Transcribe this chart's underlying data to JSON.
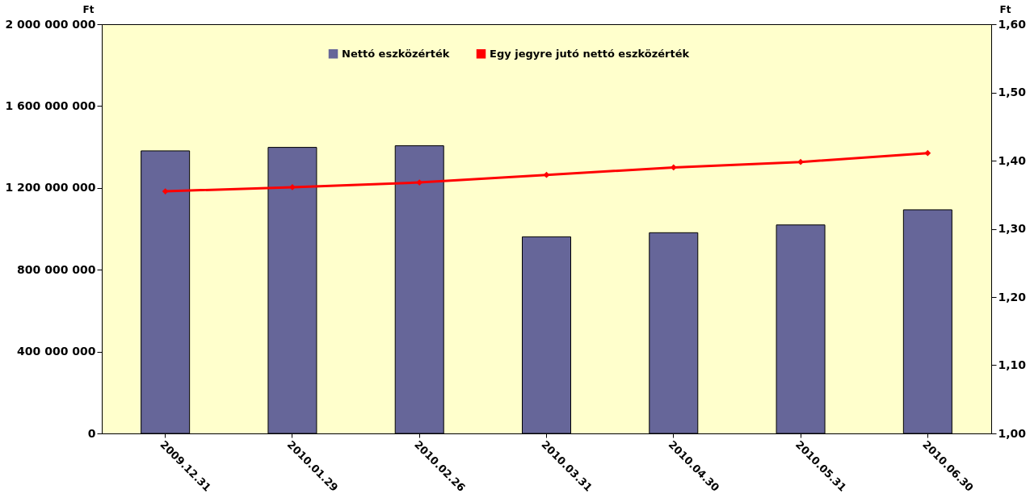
{
  "chart_data": {
    "type": "bar",
    "categories": [
      "2009.12.31",
      "2010.01.29",
      "2010.02.26",
      "2010.03.31",
      "2010.04.30",
      "2010.05.31",
      "2010.06.30"
    ],
    "ylabel": "Ft",
    "y2label": "Ft",
    "series": [
      {
        "name": "Nettó eszközérték",
        "type": "bar",
        "color": "#666699",
        "values": [
          1381000000,
          1398000000,
          1406000000,
          961000000,
          981000000,
          1019000000,
          1093000000
        ]
      },
      {
        "name": "Egy jegyre jutó nettó eszközérték",
        "type": "line",
        "axis": "y2",
        "color": "#ff0000",
        "values": [
          1.355,
          1.361,
          1.368,
          1.379,
          1.39,
          1.398,
          1.411
        ]
      }
    ],
    "ylim": [
      0,
      2000000000
    ],
    "yticks": [
      {
        "value": 0,
        "label": "0"
      },
      {
        "value": 400000000,
        "label": "400 000 000"
      },
      {
        "value": 800000000,
        "label": "800 000 000"
      },
      {
        "value": 1200000000,
        "label": "1 200 000 000"
      },
      {
        "value": 1600000000,
        "label": "1 600 000 000"
      },
      {
        "value": 2000000000,
        "label": "2 000 000 000"
      }
    ],
    "y2lim": [
      1.0,
      1.6
    ],
    "y2ticks": [
      {
        "value": 1.0,
        "label": "1,00"
      },
      {
        "value": 1.1,
        "label": "1,10"
      },
      {
        "value": 1.2,
        "label": "1,20"
      },
      {
        "value": 1.3,
        "label": "1,30"
      },
      {
        "value": 1.4,
        "label": "1,40"
      },
      {
        "value": 1.5,
        "label": "1,50"
      },
      {
        "value": 1.6,
        "label": "1,60"
      }
    ],
    "marker": "diamond",
    "line_style": "solid",
    "grid": false,
    "legend": "top"
  }
}
